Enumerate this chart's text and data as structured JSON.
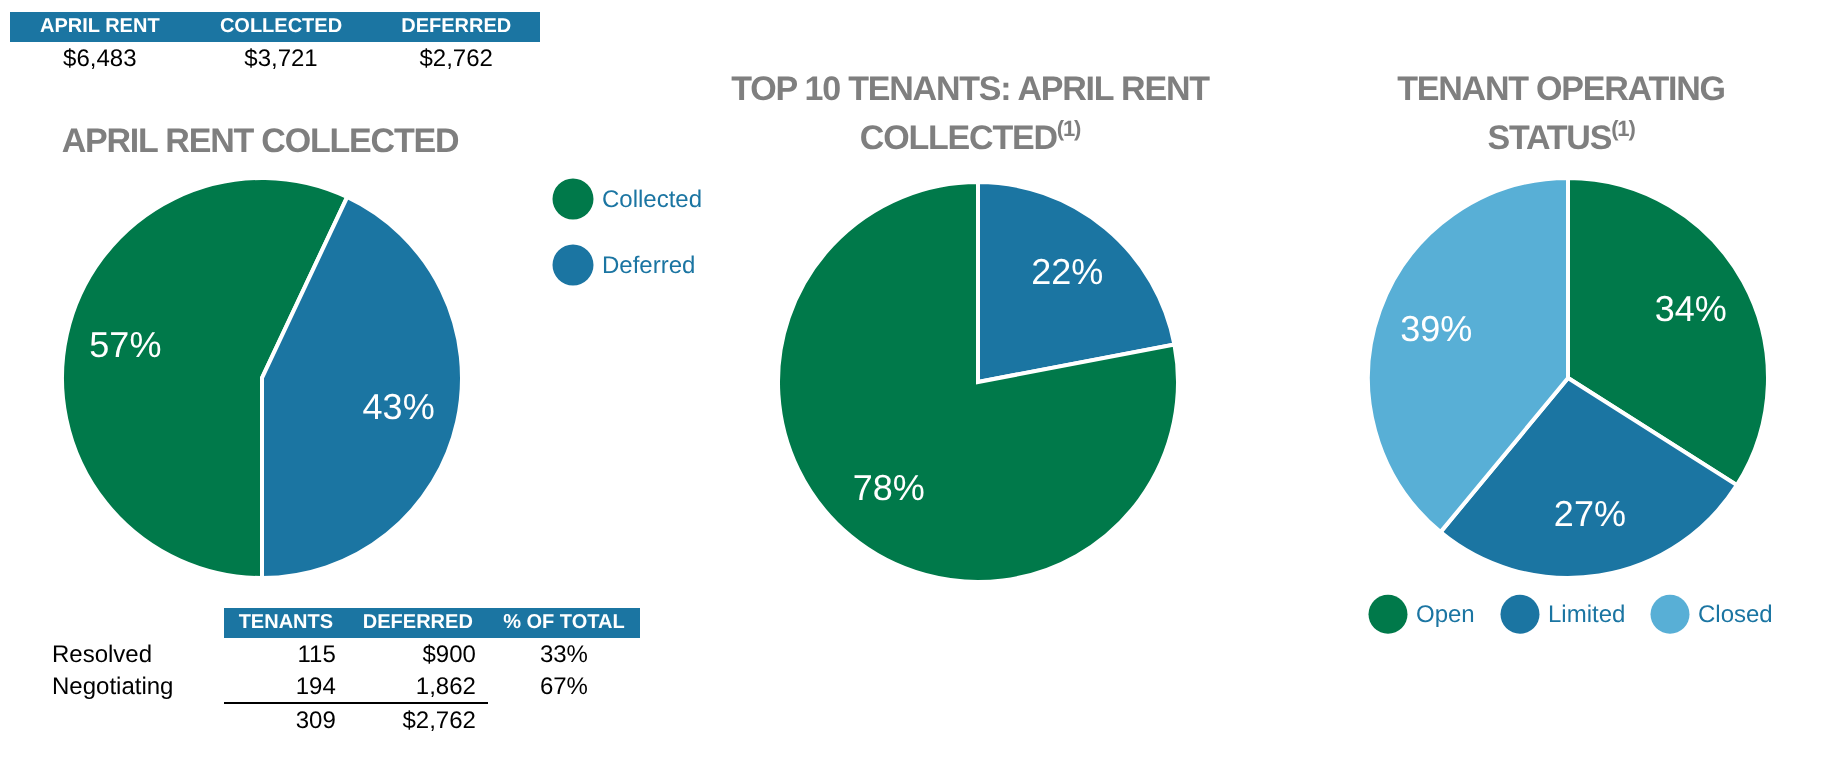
{
  "chart_data": [
    {
      "type": "pie",
      "title": "APRIL RENT COLLECTED",
      "categories": [
        "Collected",
        "Deferred"
      ],
      "values": [
        57,
        43
      ],
      "colors": [
        "#00794a",
        "#1b75a2"
      ],
      "value_labels": [
        "57%",
        "43%"
      ],
      "legend": "right",
      "annotations": [
        "APRIL RENT",
        "COLLECTED",
        "DEFERRED",
        "$6,483",
        "$3,721",
        "$2,762",
        "TENANTS",
        "DEFERRED",
        "% OF TOTAL",
        "Resolved",
        "115",
        "$900",
        "33%",
        "Negotiating",
        "194",
        "1,862",
        "67%",
        "309",
        "$2,762"
      ]
    },
    {
      "type": "pie",
      "title": "TOP 10 TENANTS: APRIL RENT COLLECTED$^{(1)}$",
      "categories": [
        null,
        null
      ],
      "values": [
        22,
        78
      ],
      "colors": [
        "#1b75a2",
        "#00794a"
      ],
      "value_labels": [
        "22%",
        "78%"
      ]
    },
    {
      "type": "pie",
      "title": "TENANT OPERATING STATUS$^{(1)}$",
      "categories": [
        "Open",
        "Limited",
        "Closed"
      ],
      "values": [
        34,
        27,
        39
      ],
      "colors": [
        "#00794a",
        "#1b75a2",
        "#58afd6"
      ],
      "value_labels": [
        "34%",
        "27%",
        "39%"
      ],
      "legend": "bottom"
    }
  ]
}
